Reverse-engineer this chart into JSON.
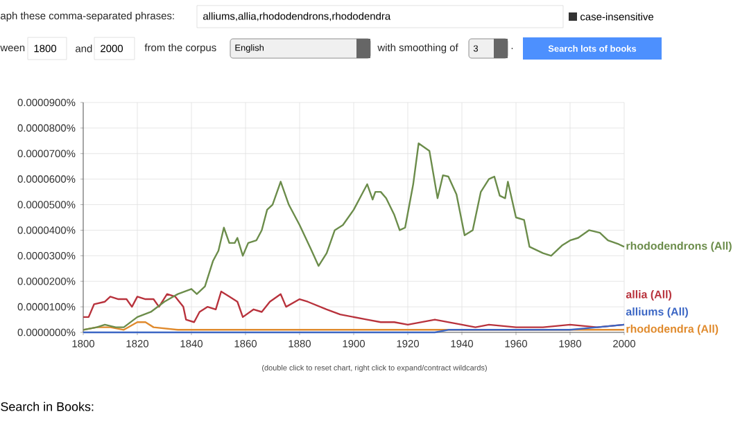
{
  "chart_data": {
    "type": "line",
    "xlim": [
      1800,
      2000
    ],
    "xticks": [
      1800,
      1820,
      1840,
      1860,
      1880,
      1900,
      1920,
      1940,
      1960,
      1980,
      2000
    ],
    "ylim": [
      0,
      9e-05
    ],
    "yticks": [
      {
        "value": 0,
        "label": "0.0000000%"
      },
      {
        "value": 1e-05,
        "label": "0.0000100%"
      },
      {
        "value": 2e-05,
        "label": "0.0000200%"
      },
      {
        "value": 3e-05,
        "label": "0.0000300%"
      },
      {
        "value": 4e-05,
        "label": "0.0000400%"
      },
      {
        "value": 5e-05,
        "label": "0.0000500%"
      },
      {
        "value": 6e-05,
        "label": "0.0000600%"
      },
      {
        "value": 7e-05,
        "label": "0.0000700%"
      },
      {
        "value": 8e-05,
        "label": "0.0000800%"
      },
      {
        "value": 9e-05,
        "label": "0.0000900%"
      }
    ],
    "grid": true,
    "marker": "none",
    "line_style": "solid",
    "series": [
      {
        "name": "rhododendrons (All)",
        "color": "#6b8c4a",
        "x": [
          1800,
          1805,
          1808,
          1812,
          1815,
          1820,
          1825,
          1830,
          1835,
          1840,
          1842,
          1845,
          1848,
          1850,
          1852,
          1854,
          1856,
          1857,
          1859,
          1861,
          1864,
          1866,
          1868,
          1870,
          1873,
          1876,
          1880,
          1884,
          1887,
          1890,
          1893,
          1896,
          1900,
          1903,
          1905,
          1907,
          1908,
          1910,
          1912,
          1915,
          1917,
          1919,
          1922,
          1924,
          1928,
          1931,
          1933,
          1935,
          1938,
          1941,
          1944,
          1947,
          1950,
          1952,
          1954,
          1956,
          1957,
          1960,
          1963,
          1965,
          1970,
          1973,
          1977,
          1980,
          1983,
          1987,
          1991,
          1994,
          1998,
          2000
        ],
        "values": [
          1e-06,
          2e-06,
          3e-06,
          2e-06,
          2e-06,
          6e-06,
          8e-06,
          1.2e-05,
          1.5e-05,
          1.7e-05,
          1.5e-05,
          1.8e-05,
          2.8e-05,
          3.2e-05,
          4.1e-05,
          3.5e-05,
          3.5e-05,
          3.7e-05,
          3e-05,
          3.5e-05,
          3.6e-05,
          4e-05,
          4.8e-05,
          5e-05,
          5.9e-05,
          5e-05,
          4.2e-05,
          3.3e-05,
          2.6e-05,
          3.1e-05,
          4e-05,
          4.2e-05,
          4.8e-05,
          5.4e-05,
          5.8e-05,
          5.2e-05,
          5.5e-05,
          5.5e-05,
          5.25e-05,
          4.6e-05,
          4e-05,
          4.1e-05,
          5.8e-05,
          7.4e-05,
          7.1e-05,
          5.25e-05,
          6.15e-05,
          6.1e-05,
          5.4e-05,
          3.8e-05,
          4e-05,
          5.5e-05,
          6e-05,
          6.1e-05,
          5.35e-05,
          5.25e-05,
          5.9e-05,
          4.5e-05,
          4.4e-05,
          3.35e-05,
          3.1e-05,
          3e-05,
          3.4e-05,
          3.6e-05,
          3.7e-05,
          4e-05,
          3.9e-05,
          3.6e-05,
          3.45e-05,
          3.35e-05
        ]
      },
      {
        "name": "alliums (All)",
        "color": "#3b66c4",
        "x": [
          1800,
          1820,
          1840,
          1900,
          1930,
          1935,
          1960,
          1980,
          1990,
          2000
        ],
        "values": [
          0,
          0,
          0,
          0,
          0,
          1e-06,
          1e-06,
          1e-06,
          2e-06,
          3e-06
        ]
      },
      {
        "name": "allia (All)",
        "color": "#b8323c",
        "x": [
          1800,
          1802,
          1804,
          1808,
          1810,
          1813,
          1816,
          1818,
          1820,
          1823,
          1826,
          1828,
          1831,
          1834,
          1837,
          1838,
          1841,
          1843,
          1846,
          1849,
          1851,
          1854,
          1857,
          1859,
          1863,
          1866,
          1869,
          1873,
          1875,
          1880,
          1883,
          1890,
          1895,
          1900,
          1905,
          1910,
          1915,
          1920,
          1925,
          1930,
          1935,
          1940,
          1945,
          1950,
          1960,
          1970,
          1980,
          1990,
          2000
        ],
        "values": [
          6e-06,
          6e-06,
          1.1e-05,
          1.2e-05,
          1.4e-05,
          1.3e-05,
          1.3e-05,
          1e-05,
          1.4e-05,
          1.3e-05,
          1.3e-05,
          1e-05,
          1.5e-05,
          1.4e-05,
          1e-05,
          5e-06,
          4e-06,
          8e-06,
          1e-05,
          9e-06,
          1.6e-05,
          1.4e-05,
          1.2e-05,
          6e-06,
          9e-06,
          8e-06,
          1.2e-05,
          1.5e-05,
          1e-05,
          1.3e-05,
          1.2e-05,
          9e-06,
          7e-06,
          6e-06,
          5e-06,
          4e-06,
          4e-06,
          3e-06,
          4e-06,
          5e-06,
          4e-06,
          3e-06,
          2e-06,
          3e-06,
          2e-06,
          2e-06,
          3e-06,
          2e-06,
          3e-06
        ]
      },
      {
        "name": "rhododendra (All)",
        "color": "#e08a2c",
        "x": [
          1800,
          1805,
          1810,
          1815,
          1820,
          1823,
          1826,
          1835,
          1850,
          1900,
          1950,
          2000
        ],
        "values": [
          1e-06,
          2e-06,
          2e-06,
          1e-06,
          4e-06,
          4e-06,
          2e-06,
          1e-06,
          1e-06,
          1e-06,
          1e-06,
          1e-06
        ]
      }
    ],
    "annotations": [
      "aph these comma-separated phrases:",
      "alliums,allia,rhododendrons,rhododendra",
      "case-insensitive",
      "ween",
      "1800",
      "and",
      "2000",
      "from the corpus",
      "English",
      "with smoothing of",
      "3",
      ".",
      "Search lots of books",
      "(double click to reset chart, right click to expand/contract wildcards)",
      "Search in Books:"
    ]
  }
}
